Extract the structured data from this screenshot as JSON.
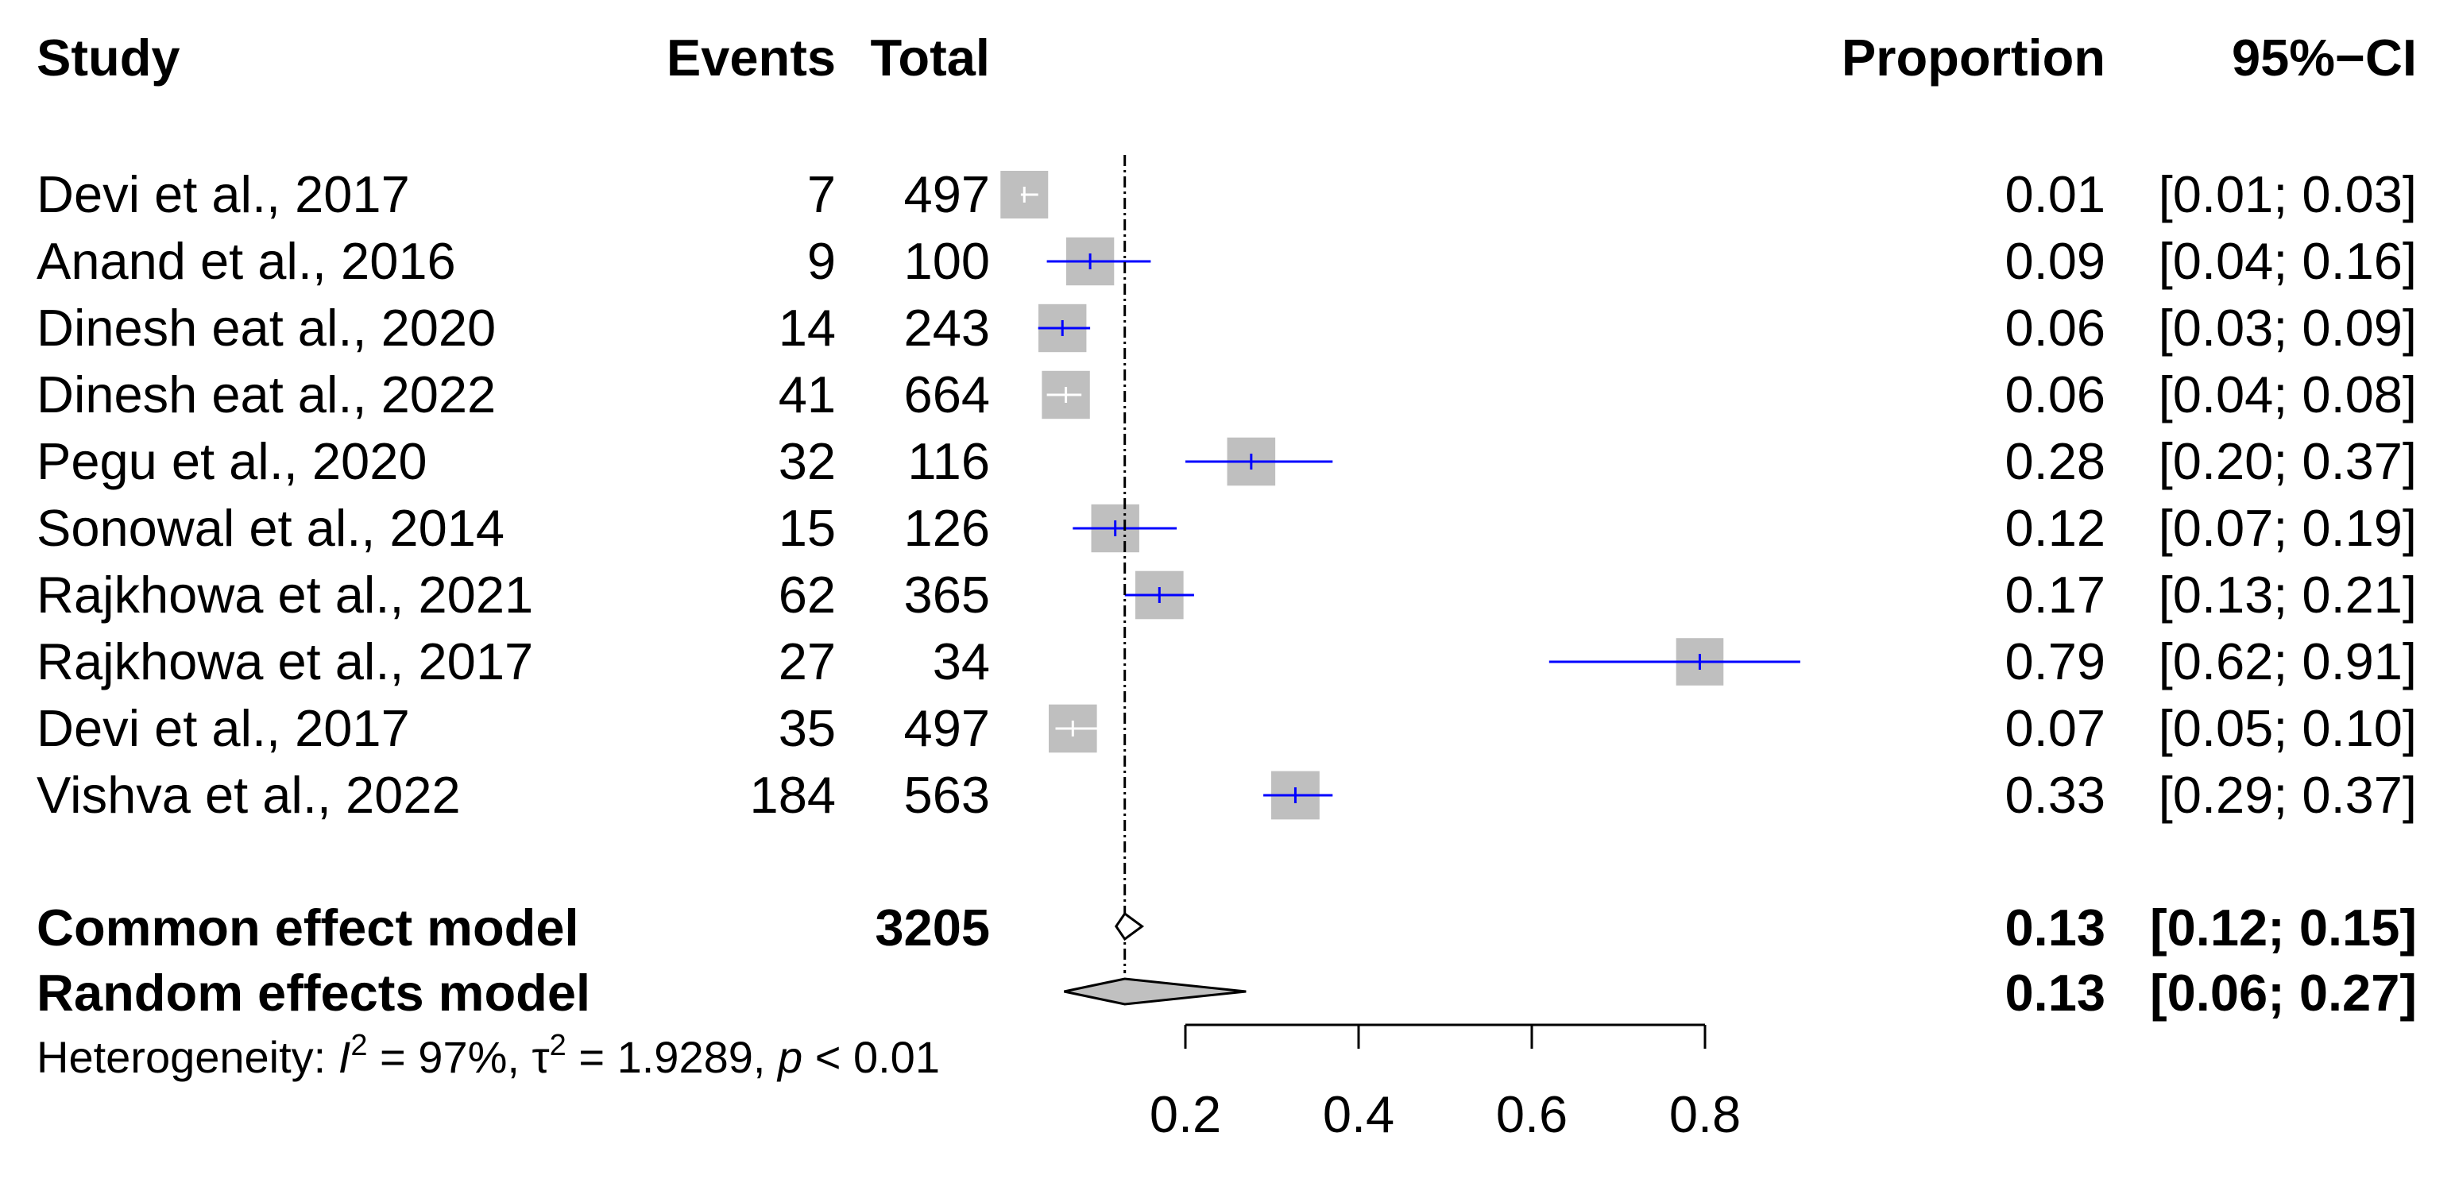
{
  "chart_data": {
    "type": "forest",
    "headers": {
      "study": "Study",
      "events": "Events",
      "total": "Total",
      "proportion": "Proportion",
      "ci": "95%−CI"
    },
    "studies": [
      {
        "study": "Devi et al., 2017",
        "events": "7",
        "total": "497",
        "proportion": "0.01",
        "ci": "[0.01; 0.03]",
        "est": 0.014,
        "lo": 0.01,
        "hi": 0.03,
        "weight": 0.6
      },
      {
        "study": "Anand et al., 2016",
        "events": "9",
        "total": "100",
        "proportion": "0.09",
        "ci": "[0.04; 0.16]",
        "est": 0.09,
        "lo": 0.04,
        "hi": 0.16,
        "weight": 0.62
      },
      {
        "study": "Dinesh eat al., 2020",
        "events": "14",
        "total": "243",
        "proportion": "0.06",
        "ci": "[0.03; 0.09]",
        "est": 0.058,
        "lo": 0.03,
        "hi": 0.09,
        "weight": 0.62
      },
      {
        "study": "Dinesh eat al., 2022",
        "events": "41",
        "total": "664",
        "proportion": "0.06",
        "ci": "[0.04; 0.08]",
        "est": 0.062,
        "lo": 0.04,
        "hi": 0.08,
        "weight": 0.62
      },
      {
        "study": "Pegu et al., 2020",
        "events": "32",
        "total": "116",
        "proportion": "0.28",
        "ci": "[0.20; 0.37]",
        "est": 0.276,
        "lo": 0.2,
        "hi": 0.37,
        "weight": 0.63
      },
      {
        "study": "Sonowal et al., 2014",
        "events": "15",
        "total": "126",
        "proportion": "0.12",
        "ci": "[0.07; 0.19]",
        "est": 0.119,
        "lo": 0.07,
        "hi": 0.19,
        "weight": 0.62
      },
      {
        "study": "Rajkhowa et al., 2021",
        "events": "62",
        "total": "365",
        "proportion": "0.17",
        "ci": "[0.13; 0.21]",
        "est": 0.17,
        "lo": 0.13,
        "hi": 0.21,
        "weight": 0.63
      },
      {
        "study": "Rajkhowa et al., 2017",
        "events": "27",
        "total": "34",
        "proportion": "0.79",
        "ci": "[0.62; 0.91]",
        "est": 0.794,
        "lo": 0.62,
        "hi": 0.91,
        "weight": 0.58
      },
      {
        "study": "Devi et al., 2017",
        "events": "35",
        "total": "497",
        "proportion": "0.07",
        "ci": "[0.05; 0.10]",
        "est": 0.07,
        "lo": 0.05,
        "hi": 0.1,
        "weight": 0.63
      },
      {
        "study": "Vishva et al., 2022",
        "events": "184",
        "total": "563",
        "proportion": "0.33",
        "ci": "[0.29; 0.37]",
        "est": 0.327,
        "lo": 0.29,
        "hi": 0.37,
        "weight": 0.64
      }
    ],
    "common_effect": {
      "label": "Common effect model",
      "total": "3205",
      "proportion": "0.13",
      "ci": "[0.12; 0.15]",
      "est": 0.13,
      "lo": 0.12,
      "hi": 0.15
    },
    "random_effects": {
      "label": "Random effects model",
      "proportion": "0.13",
      "ci": "[0.06; 0.27]",
      "est": 0.13,
      "lo": 0.06,
      "hi": 0.27
    },
    "heterogeneity": {
      "prefix": "Heterogeneity: ",
      "i_symbol": "I",
      "i_sup": "2",
      "i_value": " = 97%, ",
      "tau_symbol": "τ",
      "tau_sup": "2",
      "tau_value": " = 1.9289, ",
      "p_symbol": "p",
      "p_value": " < 0.01"
    },
    "x_axis": {
      "ticks": [
        0.2,
        0.4,
        0.6,
        0.8
      ],
      "tick_labels": [
        "0.2",
        "0.4",
        "0.6",
        "0.8"
      ],
      "range": [
        0.2,
        0.8
      ]
    },
    "reference_line": 0.13,
    "colors": {
      "box": "#bfbfbf",
      "ci_line": "#0000ff",
      "diamond": "#c0c0c0",
      "text": "#000000"
    }
  }
}
